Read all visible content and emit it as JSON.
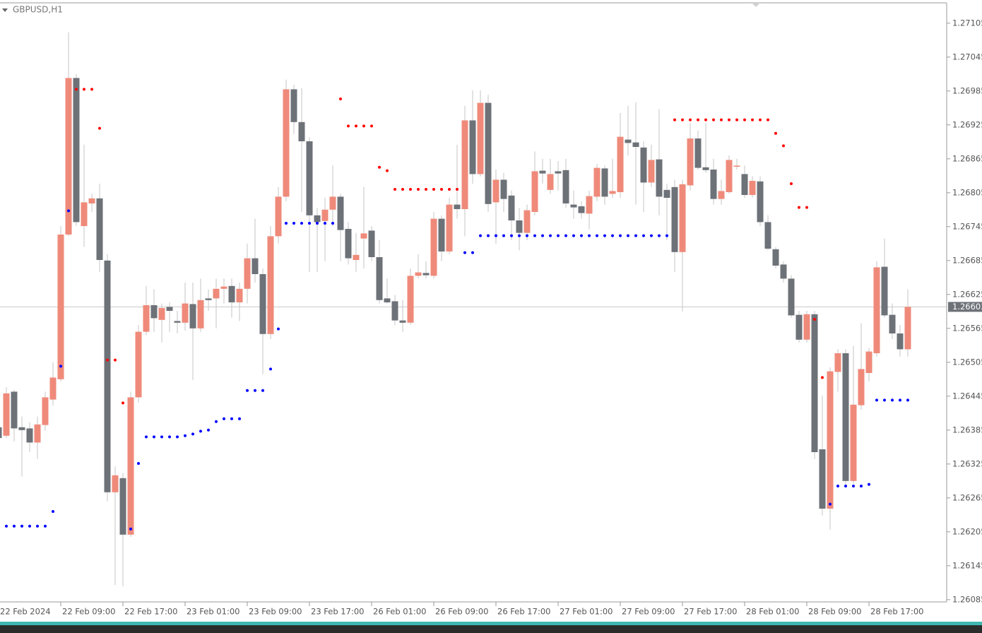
{
  "chart_data": {
    "type": "candlestick",
    "title": "GBPUSD,H1",
    "categories": [
      "22 Feb 2024",
      null,
      null,
      null,
      null,
      null,
      null,
      null,
      "22 Feb 09:00",
      null,
      null,
      null,
      null,
      null,
      null,
      null,
      "22 Feb 17:00",
      null,
      null,
      null,
      null,
      null,
      null,
      null,
      "23 Feb 01:00",
      null,
      null,
      null,
      null,
      null,
      null,
      null,
      "23 Feb 09:00",
      null,
      null,
      null,
      null,
      null,
      null,
      null,
      "23 Feb 17:00",
      null,
      null,
      null,
      null,
      null,
      null,
      null,
      "26 Feb 01:00",
      null,
      null,
      null,
      null,
      null,
      null,
      null,
      "26 Feb 09:00",
      null,
      null,
      null,
      null,
      null,
      null,
      null,
      "26 Feb 17:00",
      null,
      null,
      null,
      null,
      null,
      null,
      null,
      "27 Feb 01:00",
      null,
      null,
      null,
      null,
      null,
      null,
      null,
      "27 Feb 09:00",
      null,
      null,
      null,
      null,
      null,
      null,
      null,
      "27 Feb 17:00",
      null,
      null,
      null,
      null,
      null,
      null,
      null,
      "28 Feb 01:00",
      null,
      null,
      null,
      null,
      null,
      null,
      null,
      "28 Feb 09:00",
      null,
      null,
      null,
      null,
      null,
      null,
      null,
      "28 Feb 17:00",
      null,
      null,
      null,
      null,
      null
    ],
    "open": [
      1.2639,
      1.26375,
      1.26453,
      1.2639,
      1.26388,
      1.26363,
      1.26394,
      1.26439,
      1.26475,
      1.26731,
      1.27008,
      1.26746,
      1.26786,
      1.26795,
      1.26685,
      1.26275,
      1.263,
      1.262,
      1.26443,
      1.26559,
      1.26606,
      1.2658,
      1.26603,
      1.26578,
      1.26575,
      1.26608,
      1.26565,
      1.26618,
      1.26618,
      1.26635,
      1.2664,
      1.26611,
      1.26635,
      1.26689,
      1.26661,
      1.26555,
      1.26728,
      1.26798,
      1.26988,
      1.2693,
      1.26896,
      1.26765,
      1.26755,
      1.26775,
      1.26798,
      1.26741,
      1.26686,
      1.26724,
      1.26738,
      1.26691,
      1.26618,
      1.26613,
      1.26579,
      1.26575,
      1.26658,
      1.26663,
      1.26658,
      1.26759,
      1.26701,
      1.26784,
      1.26776,
      1.26933,
      1.26838,
      1.26964,
      1.26788,
      1.26828,
      1.268,
      1.26756,
      1.26734,
      1.26771,
      1.26844,
      1.2681,
      1.26843,
      1.26845,
      1.26784,
      1.26781,
      1.26768,
      1.26798,
      1.26848,
      1.26803,
      1.26806,
      1.26899,
      1.26894,
      1.26885,
      1.26823,
      1.26864,
      1.2681,
      1.26815,
      1.267,
      1.26818,
      1.26901,
      1.2685,
      1.26846,
      1.26794,
      1.26806,
      1.26851,
      1.26838,
      1.26801,
      1.26825,
      1.26753,
      1.26705,
      1.26678,
      1.26653,
      1.26589,
      1.26545,
      1.2659,
      1.26351,
      1.26246,
      1.26488,
      1.26521,
      1.26295,
      1.26429,
      1.26486,
      1.26521,
      1.26674,
      1.26589,
      1.26556,
      1.26528
    ],
    "high": [
      1.26396,
      1.26461,
      1.26456,
      1.26409,
      1.26399,
      1.26409,
      1.26453,
      1.26505,
      1.26746,
      1.27089,
      1.27015,
      1.2689,
      1.26803,
      1.26821,
      1.26696,
      1.26321,
      1.26309,
      1.26453,
      1.26571,
      1.2664,
      1.26634,
      1.26609,
      1.26611,
      1.26596,
      1.26646,
      1.26646,
      1.26653,
      1.26634,
      1.26653,
      1.26653,
      1.26653,
      1.26646,
      1.26715,
      1.26759,
      1.26671,
      1.26746,
      1.26815,
      1.27005,
      1.26996,
      1.2699,
      1.26903,
      1.26778,
      1.26796,
      1.26853,
      1.26803,
      1.26753,
      1.26734,
      1.26815,
      1.26746,
      1.26721,
      1.26653,
      1.26624,
      1.26615,
      1.26671,
      1.26696,
      1.26684,
      1.26771,
      1.26765,
      1.26796,
      1.2689,
      1.26959,
      1.26986,
      1.26986,
      1.26978,
      1.26846,
      1.2684,
      1.26809,
      1.26778,
      1.26784,
      1.26878,
      1.26865,
      1.26865,
      1.26861,
      1.26865,
      1.26809,
      1.2679,
      1.26809,
      1.26856,
      1.26853,
      1.26865,
      1.26946,
      1.26959,
      1.26965,
      1.26896,
      1.2689,
      1.26953,
      1.26821,
      1.26828,
      1.26828,
      1.26928,
      1.26915,
      1.26928,
      1.26865,
      1.26828,
      1.26871,
      1.26865,
      1.26853,
      1.26834,
      1.26834,
      1.26765,
      1.26709,
      1.26684,
      1.26659,
      1.26596,
      1.26596,
      1.26596,
      1.26446,
      1.26496,
      1.26528,
      1.26528,
      1.26534,
      1.26574,
      1.2653,
      1.26684,
      1.26724,
      1.26609,
      1.26571,
      1.26634
    ],
    "low": [
      1.26365,
      1.26371,
      1.26365,
      1.26303,
      1.26346,
      1.26334,
      1.26384,
      1.26428,
      1.26471,
      1.26728,
      1.26746,
      1.26709,
      1.26771,
      1.26665,
      1.26259,
      1.26111,
      1.26109,
      1.26196,
      1.26434,
      1.26553,
      1.26559,
      1.2654,
      1.26559,
      1.26556,
      1.26561,
      1.26474,
      1.26559,
      1.26596,
      1.26565,
      1.26609,
      1.26584,
      1.26578,
      1.26609,
      1.26646,
      1.26484,
      1.26546,
      1.26715,
      1.2679,
      1.26909,
      1.26771,
      1.26665,
      1.26665,
      1.26684,
      1.26746,
      1.26684,
      1.26678,
      1.26665,
      1.26671,
      1.26684,
      1.26609,
      1.26609,
      1.26571,
      1.26559,
      1.26571,
      1.26653,
      1.26653,
      1.26653,
      1.26684,
      1.26696,
      1.26759,
      1.26728,
      1.26821,
      1.26834,
      1.26771,
      1.26715,
      1.26771,
      1.26721,
      1.26703,
      1.26721,
      1.26765,
      1.26821,
      1.26803,
      1.26809,
      1.26778,
      1.26759,
      1.26759,
      1.2674,
      1.2679,
      1.26784,
      1.26796,
      1.26796,
      1.26871,
      1.26784,
      1.26771,
      1.26815,
      1.26765,
      1.26721,
      1.26665,
      1.26595,
      1.26809,
      1.26846,
      1.2684,
      1.26784,
      1.26784,
      1.26803,
      1.26846,
      1.26796,
      1.26796,
      1.26746,
      1.26703,
      1.26671,
      1.26646,
      1.26584,
      1.2654,
      1.2654,
      1.26334,
      1.26234,
      1.26209,
      1.26453,
      1.26284,
      1.2629,
      1.26421,
      1.26471,
      1.26515,
      1.26584,
      1.26546,
      1.26515,
      1.26515
    ],
    "close": [
      1.26371,
      1.2645,
      1.26388,
      1.26385,
      1.26363,
      1.26395,
      1.26443,
      1.26478,
      1.26731,
      1.27008,
      1.26753,
      1.26788,
      1.26795,
      1.26686,
      1.26275,
      1.26305,
      1.262,
      1.26443,
      1.26559,
      1.26606,
      1.26583,
      1.26601,
      1.26596,
      1.26575,
      1.26609,
      1.26565,
      1.26615,
      1.26615,
      1.26635,
      1.26639,
      1.26611,
      1.26635,
      1.26689,
      1.26661,
      1.26555,
      1.26728,
      1.26798,
      1.26988,
      1.2693,
      1.26896,
      1.26765,
      1.26753,
      1.26775,
      1.26798,
      1.26739,
      1.26689,
      1.26695,
      1.26733,
      1.26691,
      1.26615,
      1.26611,
      1.26579,
      1.26575,
      1.26658,
      1.26664,
      1.26659,
      1.26759,
      1.26701,
      1.26784,
      1.26776,
      1.26933,
      1.26838,
      1.26964,
      1.26785,
      1.26828,
      1.26794,
      1.26756,
      1.26734,
      1.26774,
      1.26843,
      1.26839,
      1.26838,
      1.26839,
      1.26786,
      1.26779,
      1.26769,
      1.26799,
      1.26849,
      1.26798,
      1.26808,
      1.26904,
      1.26893,
      1.26886,
      1.26823,
      1.26863,
      1.26798,
      1.26796,
      1.267,
      1.2682,
      1.26901,
      1.26849,
      1.26845,
      1.26794,
      1.26808,
      1.26863,
      1.26853,
      1.26801,
      1.26826,
      1.26753,
      1.26706,
      1.26676,
      1.26653,
      1.26588,
      1.26545,
      1.2659,
      1.26346,
      1.26246,
      1.26489,
      1.26521,
      1.26295,
      1.2643,
      1.26493,
      1.26524,
      1.26673,
      1.26588,
      1.26556,
      1.26528,
      1.26603
    ],
    "up_color": "#ef8a7a",
    "down_color": "#6d7278",
    "overlays": [
      {
        "type": "dots",
        "color": "#ff0000",
        "values": [
          null,
          null,
          null,
          null,
          null,
          null,
          null,
          null,
          null,
          null,
          1.26988,
          1.26988,
          1.26988,
          1.26919,
          1.26509,
          1.26509,
          1.26433,
          null,
          null,
          null,
          null,
          null,
          null,
          null,
          null,
          null,
          null,
          null,
          null,
          null,
          null,
          null,
          null,
          null,
          null,
          null,
          null,
          null,
          null,
          null,
          null,
          null,
          null,
          null,
          1.26971,
          1.26923,
          1.26923,
          1.26923,
          1.26923,
          1.2685,
          1.26844,
          1.26811,
          1.26811,
          1.26811,
          1.26811,
          1.26811,
          1.26811,
          1.26811,
          1.26811,
          1.26811,
          null,
          null,
          null,
          null,
          null,
          null,
          null,
          null,
          null,
          null,
          null,
          null,
          null,
          null,
          null,
          null,
          null,
          null,
          null,
          null,
          null,
          null,
          null,
          null,
          null,
          null,
          null,
          1.26934,
          1.26934,
          1.26934,
          1.26934,
          1.26934,
          1.26934,
          1.26934,
          1.26934,
          1.26934,
          1.26934,
          1.26934,
          1.26934,
          1.26934,
          1.2691,
          1.26888,
          1.26821,
          1.26779,
          1.26779,
          1.26581,
          1.26478,
          null,
          null,
          null,
          null,
          null,
          null,
          null,
          null,
          null,
          null,
          null
        ]
      },
      {
        "type": "dots",
        "color": "#0000ff",
        "values": [
          null,
          1.26215,
          1.26215,
          1.26215,
          1.26215,
          1.26215,
          1.26215,
          1.26241,
          1.26498,
          1.26773,
          null,
          null,
          null,
          null,
          null,
          null,
          null,
          1.2621,
          1.26326,
          1.26373,
          1.26373,
          1.26373,
          1.26373,
          1.26373,
          1.26375,
          1.26378,
          1.26383,
          1.26385,
          1.264,
          1.26405,
          1.26405,
          1.26405,
          1.26455,
          1.26455,
          1.26455,
          1.26493,
          1.26564,
          1.26751,
          1.26751,
          1.26751,
          1.26751,
          1.26751,
          1.26751,
          1.26751,
          null,
          null,
          null,
          null,
          null,
          null,
          null,
          null,
          null,
          null,
          null,
          null,
          null,
          null,
          null,
          null,
          1.26699,
          1.26699,
          1.26729,
          1.26729,
          1.26729,
          1.26729,
          1.26729,
          1.26729,
          1.26729,
          1.26729,
          1.26729,
          1.26729,
          1.26729,
          1.26729,
          1.26729,
          1.26729,
          1.26729,
          1.26729,
          1.26729,
          1.26729,
          1.26729,
          1.26729,
          1.26729,
          1.26729,
          1.26729,
          1.26729,
          1.26729,
          null,
          null,
          null,
          null,
          null,
          null,
          null,
          null,
          null,
          null,
          null,
          null,
          null,
          null,
          null,
          null,
          null,
          null,
          null,
          null,
          1.26254,
          1.26286,
          1.26286,
          1.26286,
          1.26286,
          1.26289,
          1.26438,
          1.26438,
          1.26438,
          1.26438,
          1.26438
        ]
      }
    ],
    "ylim": [
      1.26081,
      1.27141
    ],
    "yticks": [
      1.27105,
      1.27045,
      1.26985,
      1.26925,
      1.26865,
      1.26805,
      1.26745,
      1.26685,
      1.26625,
      1.26565,
      1.26505,
      1.26445,
      1.26385,
      1.26325,
      1.26265,
      1.26205,
      1.26145,
      1.26085
    ],
    "current_price": 1.26603,
    "grid": false
  }
}
